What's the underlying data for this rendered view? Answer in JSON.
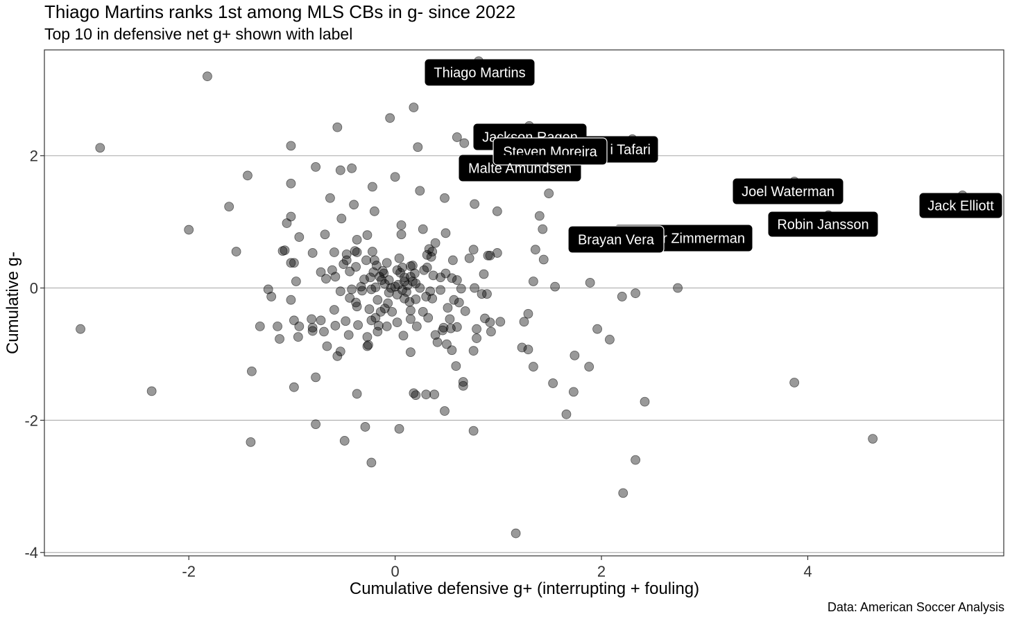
{
  "chart_data": {
    "type": "scatter",
    "title": "Thiago Martins ranks 1st among MLS CBs in g- since 2022",
    "subtitle": "Top 10 in defensive net g+ shown with label",
    "caption": "Data: American Soccer Analysis",
    "xlabel": "Cumulative defensive g+ (interrupting + fouling)",
    "ylabel": "Cumulative g-",
    "xlim": [
      -3.4,
      5.9
    ],
    "ylim": [
      -4.05,
      3.6
    ],
    "xticks": [
      -2,
      0,
      2,
      4
    ],
    "yticks": [
      -4,
      -2,
      0,
      2
    ],
    "grid": "horizontal-major",
    "point_color": "#000000",
    "point_opacity": 0.4,
    "labeled": [
      {
        "name": "Thiago Martins",
        "x": 0.81,
        "y": 3.43
      },
      {
        "name": "Jackson Ragen",
        "x": 1.3,
        "y": 2.45
      },
      {
        "name": "Kai Wagner / Tafari",
        "x": 2.3,
        "y": 2.25
      },
      {
        "name": "Steven Moreira",
        "x": 1.5,
        "y": 2.22
      },
      {
        "name": "Malte Amundsen",
        "x": 1.21,
        "y": 1.98
      },
      {
        "name": "Joel Waterman",
        "x": 3.87,
        "y": 1.61
      },
      {
        "name": "Jack Elliott",
        "x": 5.5,
        "y": 1.4
      },
      {
        "name": "Robin Jansson",
        "x": 4.2,
        "y": 1.1
      },
      {
        "name": "Walker Zimmerman",
        "x": 3.02,
        "y": 0.88
      },
      {
        "name": "Brayan Vera",
        "x": 2.16,
        "y": 0.86
      }
    ],
    "label_texts": [
      {
        "text": "Thiago Martins",
        "name": "Thiago Martins"
      },
      {
        "text": "Jackson Ragen",
        "name": "Jackson Ragen"
      },
      {
        "text": "i Tafari",
        "name": "Kai Wagner / Tafari"
      },
      {
        "text": "Steven Moreira",
        "name": "Steven Moreira"
      },
      {
        "text": "Malte Amundsen",
        "name": "Malte Amundsen"
      },
      {
        "text": "Joel Waterman",
        "name": "Joel Waterman"
      },
      {
        "text": "Jack Elliott",
        "name": "Jack Elliott"
      },
      {
        "text": "Robin Jansson",
        "name": "Robin Jansson"
      },
      {
        "text": "r Zimmerman",
        "name": "Walker Zimmerman"
      },
      {
        "text": "Brayan Vera",
        "name": "Brayan Vera"
      }
    ],
    "points": [
      [
        -1.82,
        3.2
      ],
      [
        -2.86,
        2.12
      ],
      [
        0.18,
        2.73
      ],
      [
        -0.05,
        2.57
      ],
      [
        -0.56,
        2.43
      ],
      [
        0.6,
        2.28
      ],
      [
        0.22,
        2.13
      ],
      [
        -1.01,
        2.15
      ],
      [
        0.67,
        2.19
      ],
      [
        -0.77,
        1.83
      ],
      [
        -0.42,
        1.81
      ],
      [
        -0.53,
        1.78
      ],
      [
        -1.43,
        1.7
      ],
      [
        0.0,
        1.68
      ],
      [
        -1.01,
        1.58
      ],
      [
        -0.22,
        1.53
      ],
      [
        0.24,
        1.47
      ],
      [
        1.49,
        1.43
      ],
      [
        -0.63,
        1.36
      ],
      [
        0.48,
        1.36
      ],
      [
        -1.61,
        1.23
      ],
      [
        -0.4,
        1.26
      ],
      [
        0.77,
        1.27
      ],
      [
        -0.2,
        1.16
      ],
      [
        0.99,
        1.16
      ],
      [
        -1.01,
        1.08
      ],
      [
        1.4,
        1.09
      ],
      [
        -0.52,
        1.05
      ],
      [
        -1.05,
        0.98
      ],
      [
        0.06,
        0.95
      ],
      [
        -2.0,
        0.88
      ],
      [
        0.27,
        0.89
      ],
      [
        1.43,
        0.89
      ],
      [
        -0.93,
        0.77
      ],
      [
        -0.68,
        0.81
      ],
      [
        -0.27,
        0.8
      ],
      [
        0.06,
        0.81
      ],
      [
        0.49,
        0.83
      ],
      [
        -0.37,
        0.73
      ],
      [
        0.39,
        0.68
      ],
      [
        -1.54,
        0.55
      ],
      [
        -1.07,
        0.57
      ],
      [
        -1.09,
        0.56
      ],
      [
        -0.8,
        0.53
      ],
      [
        -0.59,
        0.54
      ],
      [
        -0.39,
        0.56
      ],
      [
        -0.37,
        0.54
      ],
      [
        -0.22,
        0.55
      ],
      [
        0.33,
        0.59
      ],
      [
        0.76,
        0.58
      ],
      [
        1.36,
        0.58
      ],
      [
        0.31,
        0.5
      ],
      [
        0.36,
        0.55
      ],
      [
        0.9,
        0.49
      ],
      [
        0.92,
        0.49
      ],
      [
        0.99,
        0.53
      ],
      [
        -0.47,
        0.51
      ],
      [
        0.04,
        0.45
      ],
      [
        -1.01,
        0.38
      ],
      [
        -0.98,
        0.38
      ],
      [
        -0.47,
        0.42
      ],
      [
        -0.5,
        0.36
      ],
      [
        -0.28,
        0.42
      ],
      [
        -0.18,
        0.34
      ],
      [
        -0.08,
        0.38
      ],
      [
        0.17,
        0.34
      ],
      [
        0.15,
        0.33
      ],
      [
        0.56,
        0.42
      ],
      [
        0.72,
        0.45
      ],
      [
        0.31,
        0.31
      ],
      [
        -0.72,
        0.24
      ],
      [
        -0.61,
        0.27
      ],
      [
        -0.44,
        0.25
      ],
      [
        -0.38,
        0.32
      ],
      [
        -0.21,
        0.24
      ],
      [
        -0.12,
        0.26
      ],
      [
        0.02,
        0.27
      ],
      [
        0.05,
        0.23
      ],
      [
        0.19,
        0.22
      ],
      [
        0.49,
        0.22
      ],
      [
        1.44,
        0.43
      ],
      [
        -0.96,
        0.1
      ],
      [
        -0.67,
        0.14
      ],
      [
        -0.58,
        0.17
      ],
      [
        -0.3,
        0.13
      ],
      [
        -0.24,
        0.16
      ],
      [
        -0.13,
        0.12
      ],
      [
        0.09,
        0.16
      ],
      [
        0.15,
        0.17
      ],
      [
        0.37,
        0.19
      ],
      [
        0.55,
        0.15
      ],
      [
        0.6,
        0.12
      ],
      [
        0.86,
        0.21
      ],
      [
        1.34,
        0.1
      ],
      [
        1.89,
        0.08
      ],
      [
        -1.23,
        -0.02
      ],
      [
        -0.53,
        -0.05
      ],
      [
        -0.42,
        -0.02
      ],
      [
        -0.32,
        -0.04
      ],
      [
        -0.23,
        -0.02
      ],
      [
        -0.19,
        0.01
      ],
      [
        -0.1,
        0.06
      ],
      [
        -0.04,
        0.0
      ],
      [
        0.0,
        0.02
      ],
      [
        0.03,
        0.05
      ],
      [
        0.07,
        -0.03
      ],
      [
        0.12,
        0.04
      ],
      [
        0.2,
        0.07
      ],
      [
        0.24,
        0.0
      ],
      [
        0.44,
        -0.03
      ],
      [
        0.64,
        -0.01
      ],
      [
        0.77,
        0.0
      ],
      [
        0.89,
        -0.09
      ],
      [
        1.55,
        0.02
      ],
      [
        -1.2,
        -0.13
      ],
      [
        -1.01,
        -0.18
      ],
      [
        -0.44,
        -0.15
      ],
      [
        -0.38,
        -0.22
      ],
      [
        -0.17,
        -0.18
      ],
      [
        -0.07,
        -0.23
      ],
      [
        0.02,
        -0.1
      ],
      [
        0.09,
        -0.16
      ],
      [
        0.14,
        -0.21
      ],
      [
        0.3,
        -0.13
      ],
      [
        0.36,
        -0.16
      ],
      [
        0.57,
        -0.18
      ],
      [
        0.62,
        -0.22
      ],
      [
        0.84,
        -0.09
      ],
      [
        2.2,
        -0.13
      ],
      [
        2.33,
        -0.08
      ],
      [
        2.74,
        0.0
      ],
      [
        -0.59,
        -0.33
      ],
      [
        -0.37,
        -0.28
      ],
      [
        -0.25,
        -0.32
      ],
      [
        -0.1,
        -0.31
      ],
      [
        -0.03,
        -0.36
      ],
      [
        0.15,
        -0.34
      ],
      [
        0.27,
        -0.36
      ],
      [
        0.51,
        -0.3
      ],
      [
        0.68,
        -0.35
      ],
      [
        1.29,
        -0.39
      ],
      [
        -0.98,
        -0.49
      ],
      [
        -0.81,
        -0.47
      ],
      [
        -0.72,
        -0.49
      ],
      [
        -0.48,
        -0.5
      ],
      [
        -0.23,
        -0.49
      ],
      [
        0.02,
        -0.52
      ],
      [
        0.15,
        -0.47
      ],
      [
        0.32,
        -0.45
      ],
      [
        0.53,
        -0.47
      ],
      [
        0.87,
        -0.46
      ],
      [
        0.92,
        -0.52
      ],
      [
        1.02,
        -0.51
      ],
      [
        1.25,
        -0.51
      ],
      [
        -1.31,
        -0.58
      ],
      [
        -1.14,
        -0.58
      ],
      [
        -0.93,
        -0.58
      ],
      [
        -0.8,
        -0.6
      ],
      [
        -0.58,
        -0.57
      ],
      [
        -0.36,
        -0.56
      ],
      [
        -0.16,
        -0.57
      ],
      [
        -0.08,
        -0.58
      ],
      [
        0.21,
        -0.58
      ],
      [
        0.47,
        -0.6
      ],
      [
        0.54,
        -0.61
      ],
      [
        0.79,
        -0.62
      ],
      [
        1.96,
        -0.62
      ],
      [
        -0.94,
        -0.74
      ],
      [
        -0.8,
        -0.65
      ],
      [
        -0.69,
        -0.66
      ],
      [
        -0.45,
        -0.71
      ],
      [
        -0.27,
        -0.74
      ],
      [
        -0.17,
        -0.66
      ],
      [
        0.08,
        -0.72
      ],
      [
        0.39,
        -0.71
      ],
      [
        0.41,
        -0.82
      ],
      [
        0.5,
        -0.85
      ],
      [
        0.79,
        -0.76
      ],
      [
        0.93,
        -0.66
      ],
      [
        2.08,
        -0.78
      ],
      [
        -1.12,
        -0.77
      ],
      [
        -0.26,
        -0.86
      ],
      [
        -0.27,
        -0.88
      ],
      [
        -0.66,
        -0.88
      ],
      [
        -0.53,
        -0.96
      ],
      [
        -0.56,
        -1.03
      ],
      [
        0.15,
        -0.97
      ],
      [
        0.55,
        -0.94
      ],
      [
        0.76,
        -0.95
      ],
      [
        1.23,
        -0.9
      ],
      [
        1.29,
        -0.93
      ],
      [
        1.74,
        -1.02
      ],
      [
        0.59,
        -1.18
      ],
      [
        1.34,
        -1.19
      ],
      [
        1.88,
        -1.19
      ],
      [
        -1.39,
        -1.26
      ],
      [
        -0.77,
        -1.35
      ],
      [
        0.66,
        -1.42
      ],
      [
        1.53,
        -1.44
      ],
      [
        3.87,
        -1.43
      ],
      [
        -0.98,
        -1.5
      ],
      [
        0.66,
        -1.48
      ],
      [
        -2.36,
        -1.56
      ],
      [
        0.18,
        -1.59
      ],
      [
        0.2,
        -1.62
      ],
      [
        0.3,
        -1.61
      ],
      [
        0.38,
        -1.61
      ],
      [
        1.73,
        -1.57
      ],
      [
        -0.37,
        -1.6
      ],
      [
        2.42,
        -1.72
      ],
      [
        0.48,
        -1.86
      ],
      [
        1.66,
        -1.91
      ],
      [
        -0.77,
        -2.06
      ],
      [
        -0.29,
        -2.1
      ],
      [
        0.04,
        -2.13
      ],
      [
        0.76,
        -2.16
      ],
      [
        -1.4,
        -2.33
      ],
      [
        -0.49,
        -2.31
      ],
      [
        4.63,
        -2.28
      ],
      [
        -0.23,
        -2.64
      ],
      [
        2.33,
        -2.6
      ],
      [
        2.21,
        -3.1
      ],
      [
        1.17,
        -3.71
      ],
      [
        -3.05,
        -0.62
      ],
      [
        0.6,
        -0.59
      ],
      [
        0.46,
        -0.64
      ],
      [
        -0.19,
        -0.45
      ],
      [
        -0.14,
        -0.36
      ],
      [
        -0.06,
        -0.07
      ],
      [
        0.11,
        -0.06
      ],
      [
        0.2,
        -0.17
      ],
      [
        0.34,
        -0.05
      ],
      [
        -0.33,
        0.02
      ],
      [
        -0.06,
        0.12
      ],
      [
        0.09,
        0.1
      ],
      [
        0.17,
        0.1
      ],
      [
        -0.15,
        0.17
      ],
      [
        -0.11,
        0.22
      ],
      [
        0.07,
        0.31
      ],
      [
        0.28,
        0.27
      ],
      [
        -0.2,
        0.42
      ],
      [
        0.35,
        0.47
      ],
      [
        0.44,
        0.16
      ]
    ]
  }
}
